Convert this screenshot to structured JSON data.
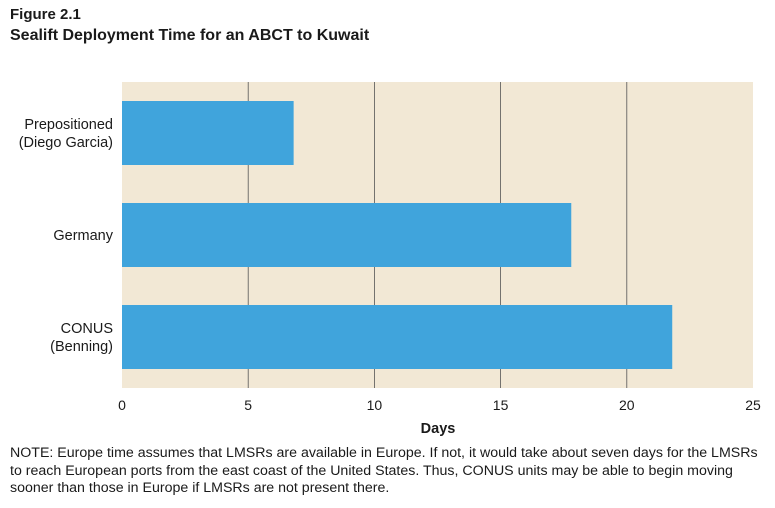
{
  "figure": {
    "label": "Figure 2.1",
    "title": "Sealift Deployment Time for an ABCT to Kuwait"
  },
  "chart_data": {
    "type": "bar",
    "orientation": "horizontal",
    "title": "Sealift Deployment Time for an ABCT to Kuwait",
    "categories": [
      [
        "Prepositioned",
        "(Diego Garcia)"
      ],
      [
        "Germany"
      ],
      [
        "CONUS",
        "(Benning)"
      ]
    ],
    "values": [
      6.8,
      17.8,
      21.8
    ],
    "xlabel": "Days",
    "ylabel": "",
    "xlim": [
      0,
      25
    ],
    "xticks": [
      0,
      5,
      10,
      15,
      20,
      25
    ],
    "grid": "vertical",
    "legend": "none",
    "colors": {
      "bar": "#40a4dc",
      "plot_bg": "#f2e8d5",
      "grid": "#555555",
      "axis_text": "#1a1a1a"
    }
  },
  "note": "NOTE: Europe time assumes that LMSRs are available in Europe. If not, it would take about seven days for the LMSRs to reach European ports from the east coast of the United States. Thus, CONUS units may be able to begin moving sooner than those in Europe if LMSRs are not present there."
}
